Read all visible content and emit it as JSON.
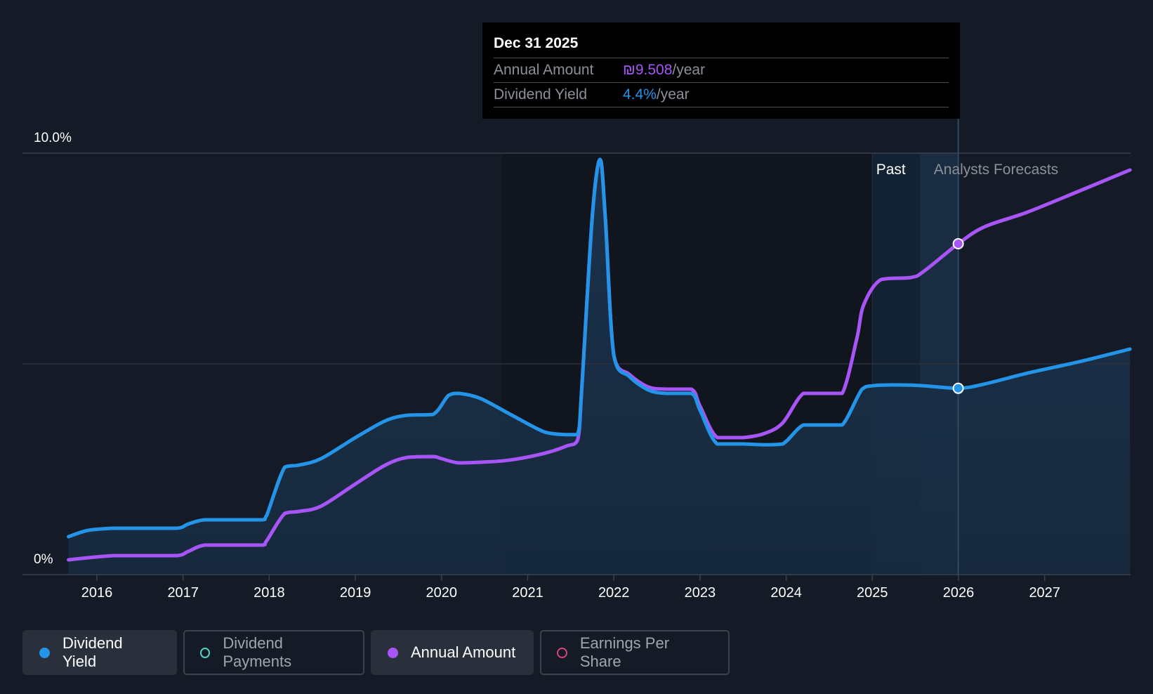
{
  "tooltip": {
    "date": "Dec 31 2025",
    "annual_amount_label": "Annual Amount",
    "annual_amount_value": "₪9.508",
    "dividend_yield_label": "Dividend Yield",
    "dividend_yield_value": "4.4%",
    "unit": "/year"
  },
  "regions": {
    "past": "Past",
    "forecast": "Analysts Forecasts"
  },
  "legend": [
    {
      "label": "Dividend Yield",
      "active": true,
      "color": "#2394e8",
      "filled": true
    },
    {
      "label": "Dividend Payments",
      "active": false,
      "color": "#4fd1c5",
      "filled": false
    },
    {
      "label": "Annual Amount",
      "active": true,
      "color": "#a855f7",
      "filled": true
    },
    {
      "label": "Earnings Per Share",
      "active": false,
      "color": "#d6457b",
      "filled": false
    }
  ],
  "colors": {
    "background": "#151b26",
    "dividend_yield": "#2394e8",
    "annual_amount": "#a855f7",
    "grid": "#3a404b"
  },
  "chart_data": {
    "type": "line",
    "y_tick_labels": [
      "10.0%",
      "0%"
    ],
    "ylim": [
      0,
      10
    ],
    "x_tick_labels": [
      "2016",
      "2017",
      "2018",
      "2019",
      "2020",
      "2021",
      "2022",
      "2023",
      "2024",
      "2025",
      "2026",
      "2027"
    ],
    "xlim": [
      2015.5,
      2027.99
    ],
    "grid": true,
    "highlight_date": 2025.997,
    "past_region_start": 2025.0,
    "forecast_region_start": 2025.55,
    "series": [
      {
        "name": "Dividend Yield",
        "color": "#2394e8",
        "points": [
          [
            2015.67,
            0.9
          ],
          [
            2015.9,
            1.05
          ],
          [
            2016.2,
            1.1
          ],
          [
            2016.5,
            1.1
          ],
          [
            2016.93,
            1.1
          ],
          [
            2017.06,
            1.2
          ],
          [
            2017.25,
            1.3
          ],
          [
            2017.6,
            1.3
          ],
          [
            2017.92,
            1.3
          ],
          [
            2017.97,
            1.4
          ],
          [
            2018.18,
            2.55
          ],
          [
            2018.35,
            2.6
          ],
          [
            2018.6,
            2.75
          ],
          [
            2019.0,
            3.25
          ],
          [
            2019.35,
            3.65
          ],
          [
            2019.6,
            3.78
          ],
          [
            2019.9,
            3.8
          ],
          [
            2020.08,
            4.25
          ],
          [
            2020.2,
            4.3
          ],
          [
            2020.45,
            4.18
          ],
          [
            2020.8,
            3.8
          ],
          [
            2021.2,
            3.38
          ],
          [
            2021.45,
            3.32
          ],
          [
            2021.58,
            3.32
          ],
          [
            2021.63,
            4.5
          ],
          [
            2021.75,
            8.5
          ],
          [
            2021.84,
            9.85
          ],
          [
            2021.9,
            8.5
          ],
          [
            2022.0,
            5.2
          ],
          [
            2022.18,
            4.7
          ],
          [
            2022.4,
            4.38
          ],
          [
            2022.6,
            4.3
          ],
          [
            2022.9,
            4.3
          ],
          [
            2023.0,
            3.9
          ],
          [
            2023.2,
            3.1
          ],
          [
            2023.5,
            3.1
          ],
          [
            2023.75,
            3.08
          ],
          [
            2023.96,
            3.1
          ],
          [
            2024.2,
            3.55
          ],
          [
            2024.45,
            3.55
          ],
          [
            2024.65,
            3.55
          ],
          [
            2024.88,
            4.4
          ],
          [
            2025.0,
            4.48
          ],
          [
            2025.3,
            4.5
          ],
          [
            2025.6,
            4.48
          ],
          [
            2025.997,
            4.42
          ],
          [
            2026.3,
            4.52
          ],
          [
            2026.8,
            4.78
          ],
          [
            2027.4,
            5.05
          ],
          [
            2027.99,
            5.35
          ]
        ]
      },
      {
        "name": "Annual Amount",
        "color": "#a855f7",
        "points": [
          [
            2015.67,
            0.35
          ],
          [
            2015.9,
            0.4
          ],
          [
            2016.2,
            0.45
          ],
          [
            2016.5,
            0.45
          ],
          [
            2016.93,
            0.45
          ],
          [
            2017.06,
            0.55
          ],
          [
            2017.25,
            0.7
          ],
          [
            2017.6,
            0.7
          ],
          [
            2017.92,
            0.7
          ],
          [
            2017.97,
            0.8
          ],
          [
            2018.18,
            1.45
          ],
          [
            2018.35,
            1.5
          ],
          [
            2018.6,
            1.62
          ],
          [
            2019.0,
            2.15
          ],
          [
            2019.35,
            2.6
          ],
          [
            2019.6,
            2.78
          ],
          [
            2019.9,
            2.8
          ],
          [
            2020.0,
            2.75
          ],
          [
            2020.2,
            2.65
          ],
          [
            2020.5,
            2.67
          ],
          [
            2020.8,
            2.72
          ],
          [
            2021.2,
            2.88
          ],
          [
            2021.45,
            3.05
          ],
          [
            2021.58,
            3.2
          ],
          [
            2021.63,
            4.5
          ],
          [
            2021.75,
            8.5
          ],
          [
            2021.84,
            9.85
          ],
          [
            2021.9,
            8.5
          ],
          [
            2022.0,
            5.2
          ],
          [
            2022.18,
            4.75
          ],
          [
            2022.4,
            4.45
          ],
          [
            2022.6,
            4.4
          ],
          [
            2022.9,
            4.4
          ],
          [
            2023.0,
            4.0
          ],
          [
            2023.2,
            3.25
          ],
          [
            2023.5,
            3.25
          ],
          [
            2023.75,
            3.35
          ],
          [
            2023.96,
            3.6
          ],
          [
            2024.2,
            4.3
          ],
          [
            2024.45,
            4.3
          ],
          [
            2024.65,
            4.3
          ],
          [
            2024.82,
            5.6
          ],
          [
            2024.9,
            6.4
          ],
          [
            2025.1,
            7.0
          ],
          [
            2025.45,
            7.05
          ],
          [
            2025.6,
            7.2
          ],
          [
            2025.997,
            7.85
          ],
          [
            2026.3,
            8.25
          ],
          [
            2026.8,
            8.6
          ],
          [
            2027.4,
            9.1
          ],
          [
            2027.99,
            9.6
          ]
        ]
      }
    ],
    "highlight_points": [
      {
        "series": "Annual Amount",
        "x": 2025.997,
        "y": 7.85
      },
      {
        "series": "Dividend Yield",
        "x": 2025.997,
        "y": 4.42
      }
    ]
  }
}
